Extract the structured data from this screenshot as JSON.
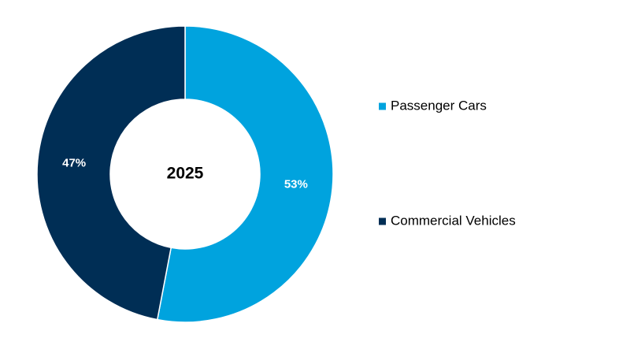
{
  "chart_data": {
    "type": "pie",
    "variant": "donut",
    "center_label": "2025",
    "categories": [
      "Passenger Cars",
      "Commercial Vehicles"
    ],
    "values": [
      53,
      47
    ],
    "value_labels": [
      "53%",
      "47%"
    ],
    "colors": [
      "#00A3DE",
      "#002E55"
    ],
    "legend_position": "right"
  }
}
